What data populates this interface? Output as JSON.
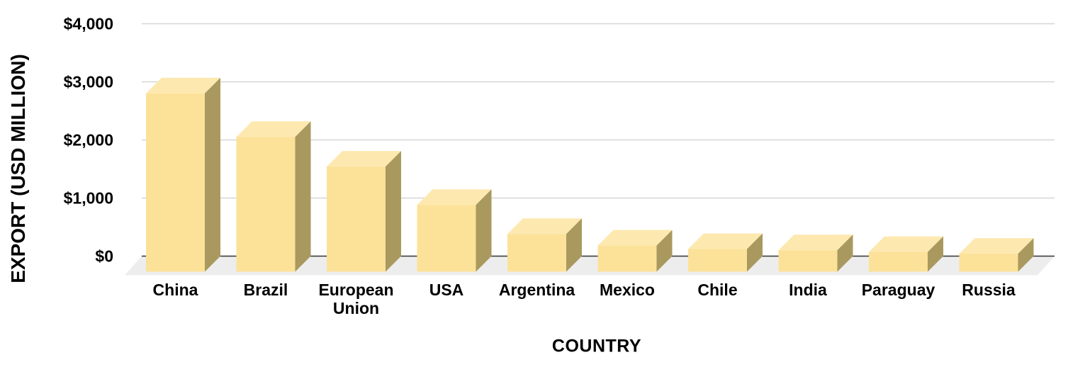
{
  "chart_data": {
    "type": "bar",
    "style": "3d-column",
    "title": "",
    "categories": [
      "China",
      "Brazil",
      "European Union",
      "USA",
      "Argentina",
      "Mexico",
      "Chile",
      "India",
      "Paraguay",
      "Russia"
    ],
    "values": [
      3070,
      2320,
      1810,
      1150,
      650,
      450,
      390,
      370,
      340,
      310
    ],
    "xlabel": "COUNTRY",
    "ylabel": "EXPORT (USD MILLION)",
    "ylim": [
      0,
      4000
    ],
    "ytick_step": 1000,
    "ytick_labels": [
      "$0",
      "$1,000",
      "$2,000",
      "$3,000",
      "$4,000"
    ],
    "grid": "horizontal",
    "legend": "none",
    "colors": {
      "bar_front": "#FCE199",
      "bar_top": "#FDE9B0",
      "bar_side": "#A9995E",
      "floor": "#EDEDED",
      "gridline": "#D6D6D6",
      "axis_line": "#333333",
      "text": "#000000",
      "background": "#FFFFFF"
    }
  }
}
